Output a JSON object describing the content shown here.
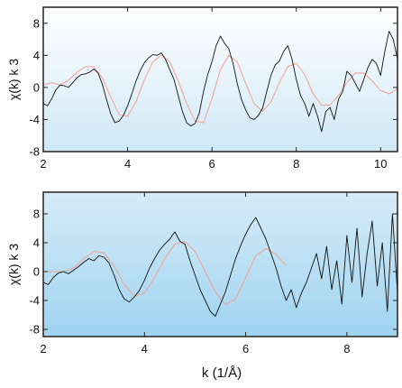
{
  "chart_data": [
    {
      "type": "line",
      "panel": "top",
      "title": "",
      "xlabel": "",
      "ylabel": "χ(k) k 3",
      "xlim": [
        2,
        10.4
      ],
      "ylim": [
        -8,
        10
      ],
      "xticks": [
        2,
        4,
        6,
        8,
        10
      ],
      "yticks": [
        -8,
        -4,
        0,
        4,
        8
      ],
      "background": {
        "top": "#ffffff",
        "bottom": "#cfe8f6"
      },
      "grid": false,
      "legend": "none",
      "series": [
        {
          "role": "experimental",
          "color": "#111111",
          "x": [
            2.0,
            2.1,
            2.2,
            2.3,
            2.4,
            2.5,
            2.6,
            2.7,
            2.8,
            2.9,
            3.0,
            3.1,
            3.2,
            3.3,
            3.4,
            3.5,
            3.6,
            3.7,
            3.8,
            3.9,
            4.0,
            4.1,
            4.2,
            4.3,
            4.4,
            4.5,
            4.6,
            4.7,
            4.8,
            4.9,
            5.0,
            5.1,
            5.2,
            5.3,
            5.4,
            5.5,
            5.6,
            5.7,
            5.8,
            5.9,
            6.0,
            6.1,
            6.2,
            6.3,
            6.4,
            6.5,
            6.6,
            6.7,
            6.8,
            6.9,
            7.0,
            7.1,
            7.2,
            7.3,
            7.4,
            7.5,
            7.6,
            7.7,
            7.8,
            7.9,
            8.0,
            8.1,
            8.2,
            8.3,
            8.4,
            8.5,
            8.6,
            8.7,
            8.8,
            8.9,
            9.0,
            9.1,
            9.2,
            9.3,
            9.4,
            9.5,
            9.6,
            9.7,
            9.8,
            9.9,
            10.0,
            10.1,
            10.2,
            10.3,
            10.4
          ],
          "y": [
            -2.0,
            -2.3,
            -1.4,
            -0.3,
            0.3,
            0.2,
            0.0,
            0.6,
            1.2,
            1.6,
            1.7,
            1.9,
            2.3,
            1.8,
            0.4,
            -1.5,
            -3.3,
            -4.4,
            -4.2,
            -3.5,
            -2.3,
            -0.8,
            0.8,
            2.1,
            3.1,
            3.7,
            4.1,
            4.0,
            4.3,
            3.5,
            2.2,
            1.0,
            -1.0,
            -3.0,
            -4.4,
            -4.8,
            -4.5,
            -3.2,
            -0.5,
            1.6,
            3.2,
            5.2,
            6.4,
            5.5,
            4.8,
            3.0,
            0.5,
            -1.5,
            -2.8,
            -3.8,
            -4.0,
            -3.5,
            -2.6,
            -0.5,
            1.5,
            2.8,
            3.3,
            4.5,
            5.2,
            3.5,
            1.0,
            -1.0,
            -2.0,
            -3.6,
            -2.0,
            -3.5,
            -5.5,
            -3.0,
            -2.5,
            -4.0,
            -1.5,
            -0.5,
            2.0,
            1.5,
            0.5,
            -0.5,
            1.0,
            2.5,
            3.5,
            3.0,
            1.5,
            4.5,
            7.0,
            6.0,
            3.5
          ]
        },
        {
          "role": "fit",
          "color": "#f2a08f",
          "x": [
            2.0,
            2.2,
            2.4,
            2.6,
            2.8,
            3.0,
            3.2,
            3.4,
            3.6,
            3.8,
            4.0,
            4.2,
            4.4,
            4.6,
            4.8,
            5.0,
            5.2,
            5.4,
            5.6,
            5.8,
            6.0,
            6.2,
            6.4,
            6.6,
            6.8,
            7.0,
            7.2,
            7.4,
            7.6,
            7.8,
            8.0,
            8.2,
            8.4,
            8.6,
            8.8,
            9.0,
            9.2,
            9.4,
            9.6,
            9.8,
            10.0,
            10.2,
            10.4
          ],
          "y": [
            0.3,
            0.6,
            0.3,
            0.9,
            1.9,
            2.6,
            2.6,
            1.2,
            -1.2,
            -3.4,
            -3.6,
            -1.8,
            1.0,
            3.2,
            4.0,
            3.2,
            0.8,
            -2.0,
            -4.2,
            -4.4,
            -1.4,
            2.2,
            4.0,
            3.2,
            0.5,
            -2.0,
            -3.0,
            -1.8,
            0.6,
            2.6,
            3.0,
            1.6,
            -0.8,
            -2.2,
            -2.2,
            -1.0,
            0.6,
            1.8,
            1.8,
            0.8,
            -0.4,
            -0.8,
            -0.2
          ]
        }
      ]
    },
    {
      "type": "line",
      "panel": "bottom",
      "title": "",
      "xlabel": "k (1/Å)",
      "ylabel": "χ(k) k 3",
      "xlim": [
        2,
        9
      ],
      "ylim": [
        -9,
        11
      ],
      "xticks": [
        2,
        4,
        6,
        8
      ],
      "yticks": [
        -8,
        -4,
        0,
        4,
        8
      ],
      "background": {
        "top": "#d6ecf8",
        "bottom": "#9fd3f0"
      },
      "grid": false,
      "legend": "none",
      "series": [
        {
          "role": "experimental",
          "color": "#111111",
          "x": [
            2.0,
            2.1,
            2.2,
            2.3,
            2.4,
            2.5,
            2.6,
            2.7,
            2.8,
            2.9,
            3.0,
            3.1,
            3.2,
            3.3,
            3.4,
            3.5,
            3.6,
            3.7,
            3.8,
            3.9,
            4.0,
            4.1,
            4.2,
            4.3,
            4.4,
            4.5,
            4.6,
            4.7,
            4.8,
            4.9,
            5.0,
            5.1,
            5.2,
            5.3,
            5.4,
            5.5,
            5.6,
            5.7,
            5.8,
            5.9,
            6.0,
            6.1,
            6.2,
            6.3,
            6.4,
            6.5,
            6.6,
            6.7,
            6.8,
            6.9,
            7.0,
            7.1,
            7.2,
            7.3,
            7.4,
            7.5,
            7.6,
            7.7,
            7.8,
            7.9,
            8.0,
            8.1,
            8.2,
            8.3,
            8.4,
            8.5,
            8.6,
            8.7,
            8.8,
            8.9,
            9.0
          ],
          "y": [
            -1.5,
            -1.8,
            -0.8,
            -0.2,
            0.0,
            -0.3,
            0.2,
            0.7,
            1.3,
            1.8,
            1.5,
            2.2,
            2.0,
            1.2,
            -0.5,
            -2.5,
            -3.8,
            -4.2,
            -3.5,
            -2.6,
            -1.2,
            0.5,
            1.8,
            3.0,
            3.8,
            4.5,
            5.5,
            4.2,
            3.8,
            1.5,
            -0.5,
            -2.5,
            -4.0,
            -5.5,
            -6.2,
            -4.5,
            -2.8,
            -0.5,
            1.8,
            3.6,
            5.2,
            6.5,
            7.5,
            6.0,
            4.5,
            2.5,
            0.5,
            -2.0,
            -4.0,
            -2.5,
            -5.0,
            -3.0,
            -1.5,
            0.5,
            2.5,
            -1.0,
            3.5,
            -2.5,
            1.5,
            -4.5,
            5.0,
            -1.5,
            6.0,
            -3.5,
            2.5,
            7.0,
            -2.0,
            4.0,
            -5.5,
            8.0,
            -3.0
          ]
        },
        {
          "role": "fit",
          "color": "#f2a08f",
          "x": [
            2.0,
            2.2,
            2.4,
            2.6,
            2.8,
            3.0,
            3.2,
            3.4,
            3.6,
            3.8,
            4.0,
            4.2,
            4.4,
            4.6,
            4.8,
            5.0,
            5.2,
            5.4,
            5.6,
            5.8,
            6.0,
            6.2,
            6.4,
            6.6,
            6.8
          ],
          "y": [
            0.0,
            0.0,
            0.0,
            0.5,
            1.8,
            2.8,
            2.6,
            0.8,
            -1.8,
            -3.4,
            -3.0,
            -0.8,
            1.8,
            3.8,
            4.2,
            2.8,
            0.0,
            -2.8,
            -4.6,
            -3.8,
            -0.8,
            2.2,
            3.2,
            2.4,
            0.8
          ]
        }
      ]
    }
  ]
}
